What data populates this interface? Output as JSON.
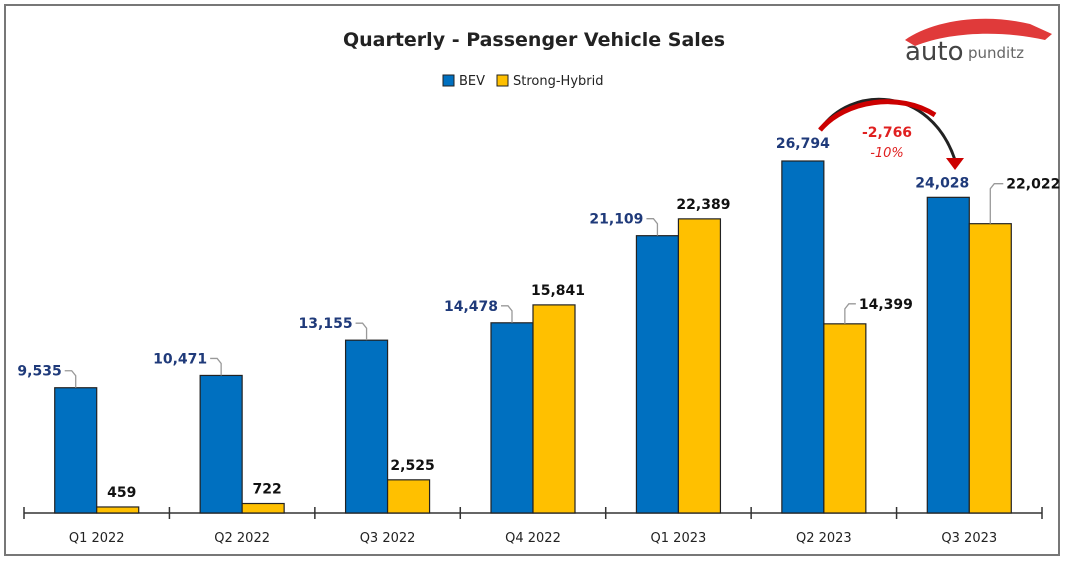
{
  "chart_data": {
    "type": "bar",
    "title": "Quarterly - Passenger Vehicle Sales",
    "categories": [
      "Q1 2022",
      "Q2 2022",
      "Q3 2022",
      "Q4 2022",
      "Q1 2023",
      "Q2 2023",
      "Q3 2023"
    ],
    "series": [
      {
        "name": "BEV",
        "color": "#0070c0",
        "label_color": "#1f3a7a",
        "values": [
          9535,
          10471,
          13155,
          14478,
          21109,
          26794,
          24028
        ],
        "labels": [
          "9,535",
          "10,471",
          "13,155",
          "14,478",
          "21,109",
          "26,794",
          "24,028"
        ]
      },
      {
        "name": "Strong-Hybrid",
        "color": "#ffc000",
        "label_color": "#111111",
        "values": [
          459,
          722,
          2525,
          15841,
          22389,
          14399,
          22022
        ],
        "labels": [
          "459",
          "722",
          "2,525",
          "15,841",
          "22,389",
          "14,399",
          "22,022"
        ]
      }
    ],
    "legend": "top",
    "grid": false,
    "ylim": [
      0,
      27000
    ],
    "annotation": {
      "change": "-2,766",
      "percent": "-10%",
      "color": "#e02020",
      "from": "Q2 2023",
      "to": "Q3 2023"
    }
  },
  "logo": {
    "text_main": "auto",
    "text_sub": "punditz",
    "color": "#e03a3a"
  }
}
